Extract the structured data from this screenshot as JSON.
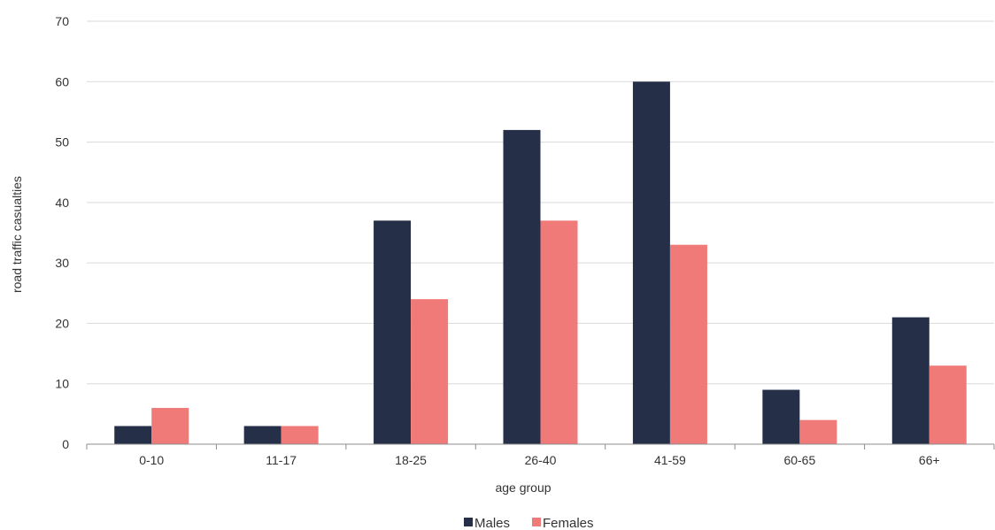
{
  "chart_data": {
    "type": "bar",
    "categories": [
      "0-10",
      "11-17",
      "18-25",
      "26-40",
      "41-59",
      "60-65",
      "66+"
    ],
    "series": [
      {
        "name": "Males",
        "values": [
          3,
          3,
          37,
          52,
          60,
          9,
          21
        ]
      },
      {
        "name": "Females",
        "values": [
          6,
          3,
          24,
          37,
          33,
          4,
          13
        ]
      }
    ],
    "xlabel": "age group",
    "ylabel": "road traffic casualties",
    "ylim": [
      0,
      70
    ],
    "yticks": [
      0,
      10,
      20,
      30,
      40,
      50,
      60,
      70
    ],
    "grid": true,
    "legend": "bottom"
  },
  "colors": {
    "males": "#252f48",
    "females": "#f07a78"
  }
}
